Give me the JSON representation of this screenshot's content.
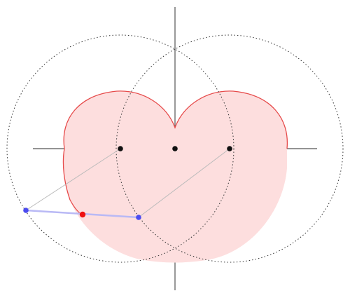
{
  "diagram": {
    "colors": {
      "background": "#ffffff",
      "axis": "#555555",
      "construction_circle": "#333333",
      "heart_fill": "#fddede",
      "heart_stroke": "#e64a4a",
      "helper_line": "#bbbbbb",
      "segment": "#b9b9f5",
      "center_point": "#111111",
      "endpoint": "#4b4bf0",
      "midpoint": "#ee1111"
    },
    "circles": [
      {
        "name": "left-dotted-circle",
        "center_point": "left-center-point"
      },
      {
        "name": "right-dotted-circle",
        "center_point": "right-center-point"
      }
    ],
    "points": [
      {
        "name": "left-center-point",
        "role": "circle center"
      },
      {
        "name": "origin-point",
        "role": "origin"
      },
      {
        "name": "right-center-point",
        "role": "circle center"
      },
      {
        "name": "endpoint-left",
        "role": "segment endpoint on left circle"
      },
      {
        "name": "endpoint-right",
        "role": "segment endpoint on right circle"
      },
      {
        "name": "midpoint",
        "role": "segment midpoint"
      }
    ],
    "legend": [],
    "labels": []
  }
}
